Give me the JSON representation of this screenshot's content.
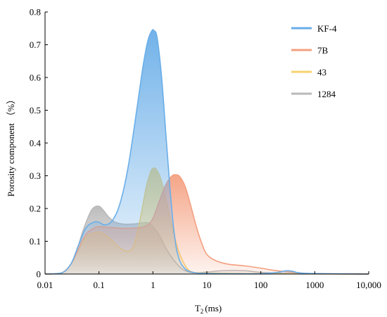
{
  "chart_data": {
    "type": "area",
    "xscale": "log",
    "xlim": [
      0.01,
      10000
    ],
    "ylim": [
      0,
      0.8
    ],
    "xlabel_main": "T",
    "xlabel_sub": "2",
    "xlabel_unit": "(ms)",
    "ylabel": "Porosity component （%）",
    "xticks": [
      {
        "value": 0.01,
        "label": "0.01"
      },
      {
        "value": 0.1,
        "label": "0.1"
      },
      {
        "value": 1,
        "label": "1"
      },
      {
        "value": 10,
        "label": "10"
      },
      {
        "value": 100,
        "label": "100"
      },
      {
        "value": 1000,
        "label": "1000"
      },
      {
        "value": 10000,
        "label": "10,000"
      }
    ],
    "yticks": [
      {
        "value": 0,
        "label": "0"
      },
      {
        "value": 0.1,
        "label": "0.1"
      },
      {
        "value": 0.2,
        "label": "0.2"
      },
      {
        "value": 0.3,
        "label": "0.3"
      },
      {
        "value": 0.4,
        "label": "0.4"
      },
      {
        "value": 0.5,
        "label": "0.5"
      },
      {
        "value": 0.6,
        "label": "0.6"
      },
      {
        "value": 0.7,
        "label": "0.7"
      },
      {
        "value": 0.8,
        "label": "0.8"
      }
    ],
    "legend_position": "top-right",
    "series": [
      {
        "name": "1284",
        "color": "#b9b9b9",
        "points": [
          [
            0.01,
            0
          ],
          [
            0.02,
            0.003
          ],
          [
            0.03,
            0.03
          ],
          [
            0.04,
            0.08
          ],
          [
            0.05,
            0.13
          ],
          [
            0.06,
            0.165
          ],
          [
            0.07,
            0.19
          ],
          [
            0.08,
            0.203
          ],
          [
            0.1,
            0.207
          ],
          [
            0.12,
            0.195
          ],
          [
            0.15,
            0.175
          ],
          [
            0.2,
            0.158
          ],
          [
            0.3,
            0.152
          ],
          [
            0.45,
            0.153
          ],
          [
            0.7,
            0.157
          ],
          [
            0.85,
            0.155
          ],
          [
            1,
            0.145
          ],
          [
            1.3,
            0.12
          ],
          [
            1.8,
            0.075
          ],
          [
            2.5,
            0.04
          ],
          [
            3.5,
            0.015
          ],
          [
            5,
            0.005
          ],
          [
            7,
            0.004
          ],
          [
            10,
            0.006
          ],
          [
            20,
            0.01
          ],
          [
            50,
            0.01
          ],
          [
            100,
            0.005
          ],
          [
            300,
            0.002
          ],
          [
            1000,
            0.001
          ],
          [
            10000,
            0
          ]
        ]
      },
      {
        "name": "43",
        "color": "#f7d36e",
        "points": [
          [
            0.01,
            0
          ],
          [
            0.02,
            0.003
          ],
          [
            0.03,
            0.03
          ],
          [
            0.04,
            0.07
          ],
          [
            0.05,
            0.1
          ],
          [
            0.06,
            0.115
          ],
          [
            0.08,
            0.125
          ],
          [
            0.1,
            0.128
          ],
          [
            0.13,
            0.12
          ],
          [
            0.18,
            0.1
          ],
          [
            0.25,
            0.078
          ],
          [
            0.35,
            0.07
          ],
          [
            0.45,
            0.09
          ],
          [
            0.6,
            0.18
          ],
          [
            0.75,
            0.265
          ],
          [
            0.9,
            0.31
          ],
          [
            1,
            0.322
          ],
          [
            1.15,
            0.32
          ],
          [
            1.4,
            0.29
          ],
          [
            1.8,
            0.22
          ],
          [
            2.3,
            0.14
          ],
          [
            3,
            0.07
          ],
          [
            4,
            0.025
          ],
          [
            5,
            0.008
          ],
          [
            7,
            0.004
          ],
          [
            10,
            0.003
          ],
          [
            30,
            0.002
          ],
          [
            100,
            0.001
          ],
          [
            10000,
            0
          ]
        ]
      },
      {
        "name": "7B",
        "color": "#f4a080",
        "points": [
          [
            0.01,
            0
          ],
          [
            0.02,
            0.003
          ],
          [
            0.03,
            0.03
          ],
          [
            0.04,
            0.07
          ],
          [
            0.05,
            0.105
          ],
          [
            0.06,
            0.125
          ],
          [
            0.08,
            0.14
          ],
          [
            0.1,
            0.145
          ],
          [
            0.15,
            0.143
          ],
          [
            0.25,
            0.14
          ],
          [
            0.4,
            0.14
          ],
          [
            0.6,
            0.142
          ],
          [
            0.8,
            0.15
          ],
          [
            1,
            0.17
          ],
          [
            1.3,
            0.22
          ],
          [
            1.7,
            0.27
          ],
          [
            2.2,
            0.298
          ],
          [
            2.7,
            0.303
          ],
          [
            3.2,
            0.296
          ],
          [
            4,
            0.265
          ],
          [
            5,
            0.21
          ],
          [
            6.5,
            0.14
          ],
          [
            8,
            0.095
          ],
          [
            10,
            0.06
          ],
          [
            15,
            0.04
          ],
          [
            25,
            0.03
          ],
          [
            50,
            0.025
          ],
          [
            100,
            0.018
          ],
          [
            200,
            0.01
          ],
          [
            500,
            0.004
          ],
          [
            1000,
            0.001
          ],
          [
            10000,
            0
          ]
        ]
      },
      {
        "name": "KF-4",
        "color": "#6aaee8",
        "points": [
          [
            0.01,
            0
          ],
          [
            0.02,
            0.003
          ],
          [
            0.03,
            0.03
          ],
          [
            0.04,
            0.08
          ],
          [
            0.05,
            0.12
          ],
          [
            0.06,
            0.145
          ],
          [
            0.08,
            0.158
          ],
          [
            0.1,
            0.158
          ],
          [
            0.13,
            0.15
          ],
          [
            0.18,
            0.165
          ],
          [
            0.25,
            0.22
          ],
          [
            0.35,
            0.33
          ],
          [
            0.5,
            0.5
          ],
          [
            0.65,
            0.63
          ],
          [
            0.8,
            0.71
          ],
          [
            0.95,
            0.742
          ],
          [
            1.05,
            0.743
          ],
          [
            1.2,
            0.72
          ],
          [
            1.45,
            0.6
          ],
          [
            1.75,
            0.42
          ],
          [
            2.1,
            0.25
          ],
          [
            2.5,
            0.12
          ],
          [
            3,
            0.05
          ],
          [
            4,
            0.015
          ],
          [
            6,
            0.004
          ],
          [
            10,
            0.002
          ],
          [
            30,
            0.001
          ],
          [
            100,
            0.001
          ],
          [
            200,
            0.005
          ],
          [
            300,
            0.01
          ],
          [
            400,
            0.008
          ],
          [
            700,
            0.002
          ],
          [
            10000,
            0
          ]
        ]
      }
    ]
  }
}
